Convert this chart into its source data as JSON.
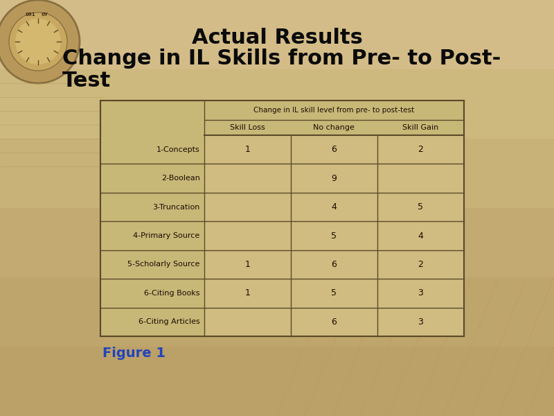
{
  "title_line1": "Actual Results",
  "title_line2a": "Change in IL Skills from Pre- to Post-",
  "title_line2b": "Test",
  "bg_color_top": "#d4bc8a",
  "bg_color": "#c8ad7a",
  "table_outer_bg": "#c8b878",
  "cell_bg": "#d4c48a",
  "border_color": "#6a5a30",
  "figure1_text": "Figure 1",
  "header_span": "Change in IL skill level from pre- to post-test",
  "col_headers": [
    "Skill Loss",
    "No change",
    "Skill Gain"
  ],
  "row_labels": [
    "1-Concepts",
    "2-Boolean",
    "3-Truncation",
    "4-Primary Source",
    "5-Scholarly Source",
    "6-Citing Books",
    "6-Citing Articles"
  ],
  "table_data": [
    [
      "1",
      "6",
      "2"
    ],
    [
      "",
      "9",
      ""
    ],
    [
      "",
      "4",
      "5"
    ],
    [
      "",
      "5",
      "4"
    ],
    [
      "1",
      "6",
      "2"
    ],
    [
      "1",
      "5",
      "3"
    ],
    [
      "",
      "6",
      "3"
    ]
  ],
  "title_fontsize": 22,
  "subtitle_fontsize": 22,
  "figure1_fontsize": 14,
  "table_fontsize": 8,
  "title_color": "#0a0a0a",
  "figure1_color": "#2244bb"
}
